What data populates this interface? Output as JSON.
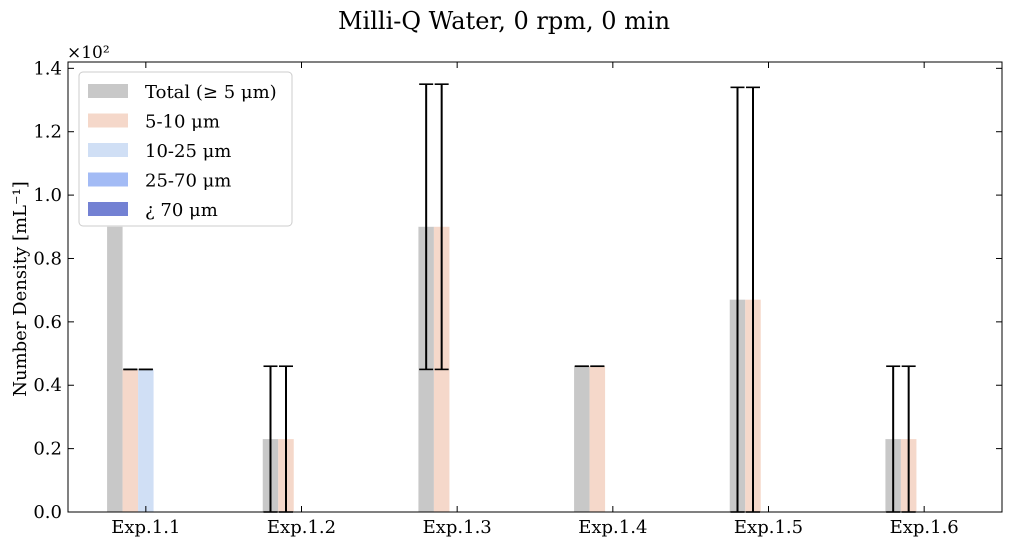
{
  "chart_data": {
    "type": "bar",
    "title": "Milli-Q Water, 0 rpm, 0 min",
    "xlabel": "",
    "ylabel": "Number Density [mL⁻¹]",
    "y_scale_label": "×10²",
    "ylim": [
      0,
      1.42
    ],
    "yticks": [
      "0.0",
      "0.2",
      "0.4",
      "0.6",
      "0.8",
      "1.0",
      "1.2",
      "1.4"
    ],
    "ytick_values": [
      0,
      0.2,
      0.4,
      0.6,
      0.8,
      1.0,
      1.2,
      1.4
    ],
    "grid": false,
    "legend_position": "top-left",
    "categories": [
      "Exp.1.1",
      "Exp.1.2",
      "Exp.1.3",
      "Exp.1.4",
      "Exp.1.5",
      "Exp.1.6"
    ],
    "series": [
      {
        "name": "Total (≥ 5 μm)",
        "color": "#c8c8c8",
        "values": [
          0.9,
          0.23,
          0.9,
          0.46,
          0.67,
          0.23
        ],
        "errors": [
          null,
          0.23,
          0.45,
          0.0,
          0.67,
          0.23
        ]
      },
      {
        "name": "5-10 μm",
        "color": "#f5d8ca",
        "values": [
          0.45,
          0.23,
          0.9,
          0.46,
          0.67,
          0.23
        ],
        "errors": [
          0.0,
          0.23,
          0.45,
          0.0,
          0.67,
          0.23
        ]
      },
      {
        "name": "10-25 μm",
        "color": "#d0dff5",
        "values": [
          0.45,
          0,
          0,
          0,
          0,
          0
        ],
        "errors": [
          0.0,
          0,
          0,
          0,
          0,
          0
        ]
      },
      {
        "name": "25-70 μm",
        "color": "#a3bbf5",
        "values": [
          0,
          0,
          0,
          0,
          0,
          0
        ],
        "errors": [
          0,
          0,
          0,
          0,
          0,
          0
        ]
      },
      {
        "name": "¿ 70 μm",
        "color": "#7381d3",
        "values": [
          0,
          0,
          0,
          0,
          0,
          0
        ],
        "errors": [
          0,
          0,
          0,
          0,
          0,
          0
        ]
      }
    ]
  }
}
